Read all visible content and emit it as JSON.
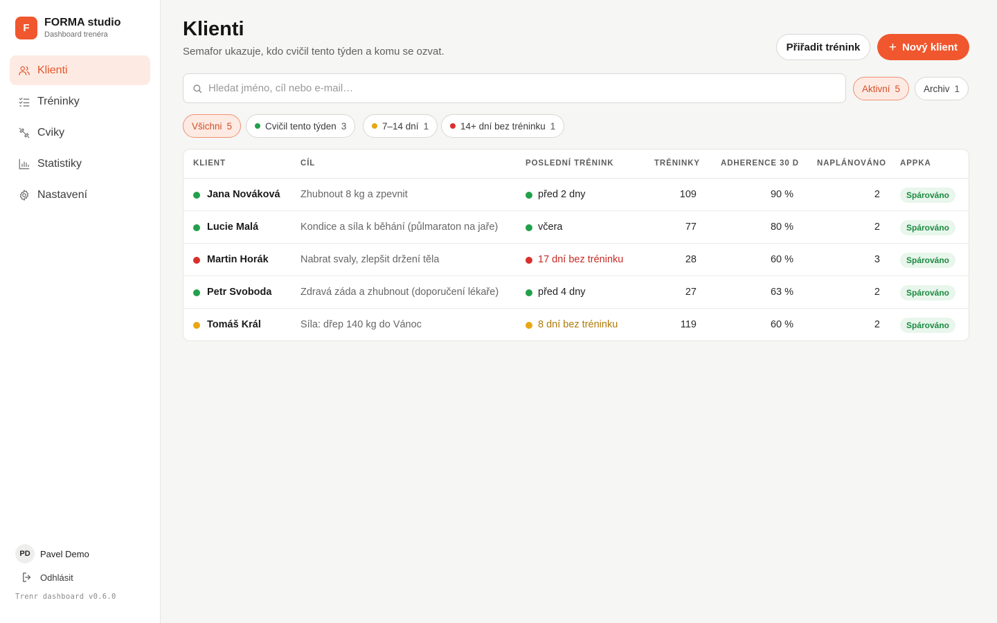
{
  "brand": {
    "logo_letter": "F",
    "name": "FORMA studio",
    "subtitle": "Dashboard trenéra"
  },
  "sidebar": {
    "items": [
      {
        "label": "Klienti",
        "icon": "users-icon",
        "active": true
      },
      {
        "label": "Tréninky",
        "icon": "checklist-icon",
        "active": false
      },
      {
        "label": "Cviky",
        "icon": "dumbbell-icon",
        "active": false
      },
      {
        "label": "Statistiky",
        "icon": "bar-chart-icon",
        "active": false
      },
      {
        "label": "Nastavení",
        "icon": "gear-icon",
        "active": false
      }
    ],
    "user": {
      "initials": "PD",
      "name": "Pavel Demo"
    },
    "logout_label": "Odhlásit",
    "version": "Trenr dashboard v0.6.0"
  },
  "header": {
    "title": "Klienti",
    "subtitle": "Semafor ukazuje, kdo cvičil tento týden a komu se ozvat.",
    "assign_button": "Přiřadit trénink",
    "new_client_button": "Nový klient"
  },
  "search": {
    "placeholder": "Hledat jméno, cíl nebo e-mail…",
    "value": ""
  },
  "status_tabs": [
    {
      "label": "Aktivní",
      "count": "5",
      "active": true
    },
    {
      "label": "Archiv",
      "count": "1",
      "active": false
    }
  ],
  "filters": [
    {
      "label": "Všichni",
      "count": "5",
      "active": true,
      "dot": ""
    },
    {
      "label": "Cvičil tento týden",
      "count": "3",
      "active": false,
      "dot": "#22a04b"
    },
    {
      "label": "7–14 dní",
      "count": "1",
      "active": false,
      "dot": "#e8a712"
    },
    {
      "label": "14+ dní bez tréninku",
      "count": "1",
      "active": false,
      "dot": "#d9302c"
    }
  ],
  "colors": {
    "accent": "#f0572e",
    "green": "#22a04b",
    "amber": "#e8a712",
    "red": "#d9302c"
  },
  "table": {
    "headers": {
      "client": "KLIENT",
      "goal": "CÍL",
      "last": "POSLEDNÍ TRÉNINK",
      "trainings": "TRÉNINKY",
      "adherence": "ADHERENCE 30 D",
      "planned": "NAPLÁNOVÁNO",
      "app": "APPKA"
    },
    "rows": [
      {
        "status": "green",
        "name": "Jana Nováková",
        "goal": "Zhubnout 8 kg a zpevnit",
        "last": "před 2 dny",
        "last_status": "green",
        "trainings": "109",
        "adherence": "90 %",
        "planned": "2",
        "app": "Spárováno"
      },
      {
        "status": "green",
        "name": "Lucie Malá",
        "goal": "Kondice a síla k běhání (půlmaraton na jaře)",
        "last": "včera",
        "last_status": "green",
        "trainings": "77",
        "adherence": "80 %",
        "planned": "2",
        "app": "Spárováno"
      },
      {
        "status": "red",
        "name": "Martin Horák",
        "goal": "Nabrat svaly, zlepšit držení těla",
        "last": "17 dní bez tréninku",
        "last_status": "red",
        "trainings": "28",
        "adherence": "60 %",
        "planned": "3",
        "app": "Spárováno"
      },
      {
        "status": "green",
        "name": "Petr Svoboda",
        "goal": "Zdravá záda a zhubnout (doporučení lékaře)",
        "last": "před 4 dny",
        "last_status": "green",
        "trainings": "27",
        "adherence": "63 %",
        "planned": "2",
        "app": "Spárováno"
      },
      {
        "status": "amber",
        "name": "Tomáš Král",
        "goal": "Síla: dřep 140 kg do Vánoc",
        "last": "8 dní bez tréninku",
        "last_status": "amber",
        "trainings": "119",
        "adherence": "60 %",
        "planned": "2",
        "app": "Spárováno"
      }
    ]
  }
}
